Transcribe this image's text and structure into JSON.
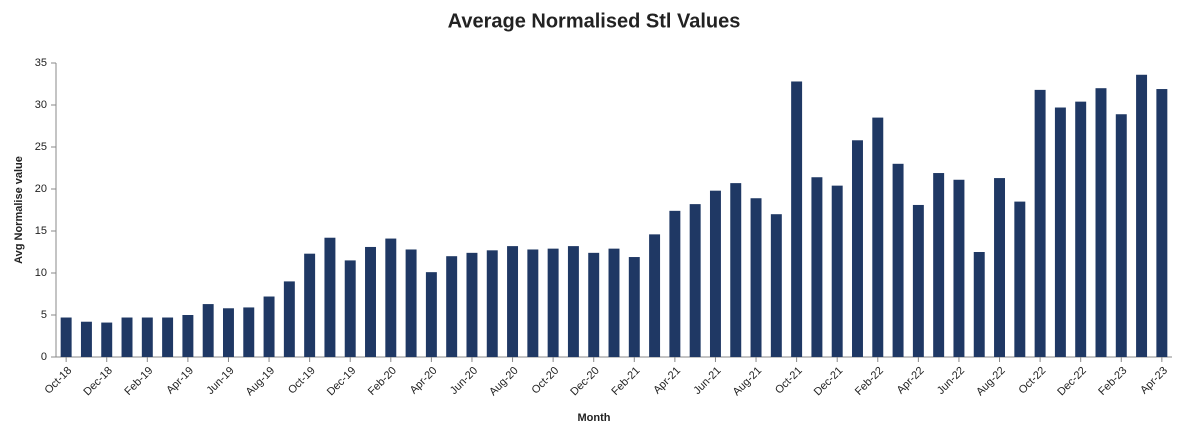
{
  "chart_data": {
    "type": "bar",
    "title": "Average Normalised Stl Values",
    "x_label": "Month",
    "y_label": "Avg Normalise value",
    "categories": [
      "Oct-18",
      null,
      "Dec-18",
      null,
      "Feb-19",
      null,
      "Apr-19",
      null,
      "Jun-19",
      null,
      "Aug-19",
      null,
      "Oct-19",
      null,
      "Dec-19",
      null,
      "Feb-20",
      null,
      "Apr-20",
      null,
      "Jun-20",
      null,
      "Aug-20",
      null,
      "Oct-20",
      null,
      "Dec-20",
      null,
      "Feb-21",
      null,
      "Apr-21",
      null,
      "Jun-21",
      null,
      "Aug-21",
      null,
      "Oct-21",
      null,
      "Dec-21",
      null,
      "Feb-22",
      null,
      "Apr-22",
      null,
      "Jun-22",
      null,
      "Aug-22",
      null,
      "Oct-22",
      null,
      "Dec-22",
      null,
      "Feb-23",
      null,
      "Apr-23"
    ],
    "values": [
      4.7,
      4.2,
      4.1,
      4.7,
      4.7,
      4.7,
      5.0,
      6.3,
      5.8,
      5.9,
      7.2,
      9.0,
      12.3,
      14.2,
      11.5,
      13.1,
      14.1,
      12.8,
      10.1,
      12.0,
      12.4,
      12.7,
      13.2,
      12.8,
      12.9,
      13.2,
      12.4,
      12.9,
      11.9,
      14.6,
      17.4,
      18.2,
      19.8,
      20.7,
      18.9,
      17.0,
      32.8,
      21.4,
      20.4,
      25.8,
      28.5,
      23.0,
      18.1,
      21.9,
      21.1,
      12.5,
      21.3,
      18.5,
      31.8,
      29.7,
      30.4,
      32.0,
      28.9,
      33.6,
      31.9
    ],
    "color": "#1f3864",
    "ylim": [
      0,
      35
    ],
    "yticks": [
      0,
      5,
      10,
      15,
      20,
      25,
      30,
      35
    ],
    "grid": false
  }
}
